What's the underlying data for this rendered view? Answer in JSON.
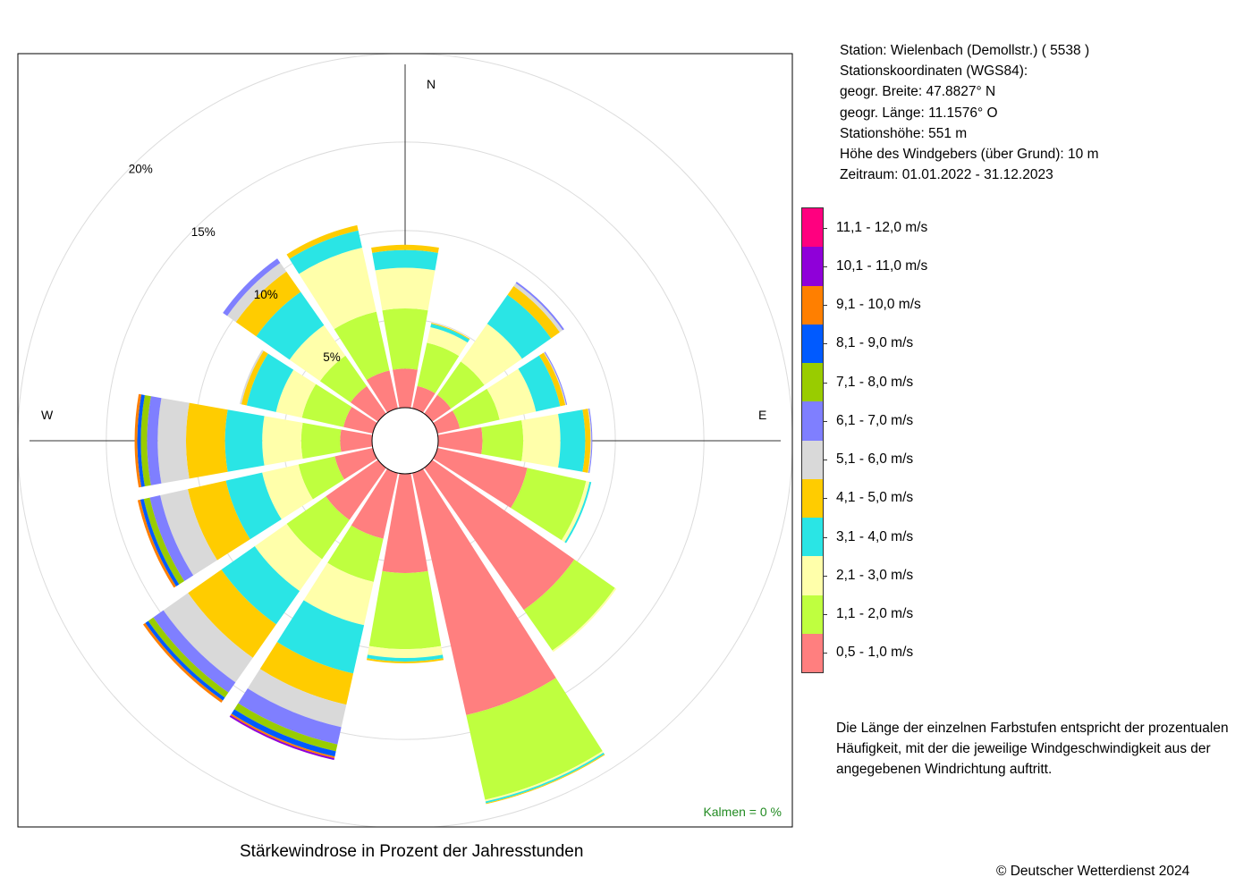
{
  "info": {
    "station": "Station:  Wielenbach (Demollstr.)  ( 5538 )",
    "coords_title": "Stationskoordinaten (WGS84):",
    "lat": "geogr. Breite: 47.8827° N",
    "lon": "geogr. Länge: 11.1576° O",
    "elevation": "Stationshöhe: 551 m",
    "sensor_height": "Höhe des Windgebers (über Grund): 10 m",
    "period": "Zeitraum: 01.01.2022 - 31.12.2023"
  },
  "note": [
    "Die Länge der einzelnen Farbstufen entspricht der prozentualen",
    "Häufigkeit, mit der die jeweilige Windgeschwindigkeit aus der",
    "angegebenen Windrichtung auftritt."
  ],
  "caption": "Stärkewindrose in Prozent der Jahresstunden",
  "copyright": "© Deutscher Wetterdienst  2024",
  "chart_data": {
    "type": "windrose",
    "directions": [
      "N",
      "NNO",
      "NO",
      "ONO",
      "O",
      "OSO",
      "SO",
      "SSO",
      "S",
      "SSW",
      "SW",
      "WSW",
      "W",
      "WNW",
      "NW",
      "NNW"
    ],
    "compass_labels": {
      "n": "N",
      "e": "E",
      "w": "W"
    },
    "radial_ticks": [
      {
        "value": 5,
        "label": "5%"
      },
      {
        "value": 10,
        "label": "10%"
      },
      {
        "value": 15,
        "label": "15%"
      },
      {
        "value": 20,
        "label": "20%"
      }
    ],
    "rmax": 21,
    "calm_text": "Kalmen  =  0 %",
    "speed_classes": [
      {
        "label": "0,5 - 1,0 m/s",
        "color": "#ff7f7f"
      },
      {
        "label": "1,1 - 2,0 m/s",
        "color": "#bfff3f"
      },
      {
        "label": "2,1 - 3,0 m/s",
        "color": "#ffffaa"
      },
      {
        "label": "3,1 - 4,0 m/s",
        "color": "#2ae5e5"
      },
      {
        "label": "4,1 - 5,0 m/s",
        "color": "#ffcc00"
      },
      {
        "label": "5,1 - 6,0 m/s",
        "color": "#d9d9d9"
      },
      {
        "label": "6,1 - 7,0 m/s",
        "color": "#7f7fff"
      },
      {
        "label": "7,1 - 8,0 m/s",
        "color": "#99cc00"
      },
      {
        "label": "8,1 - 9,0 m/s",
        "color": "#005aff"
      },
      {
        "label": "9,1 - 10,0 m/s",
        "color": "#ff7f00"
      },
      {
        "label": "10,1 - 11,0 m/s",
        "color": "#8f00d9"
      },
      {
        "label": "11,1 - 12,0 m/s",
        "color": "#ff007f"
      }
    ],
    "series": [
      {
        "direction": "N",
        "values": [
          2.2,
          3.4,
          2.3,
          1.0,
          0.3,
          0,
          0,
          0,
          0,
          0,
          0,
          0
        ]
      },
      {
        "direction": "NNO",
        "values": [
          1.3,
          2.5,
          0.9,
          0.2,
          0.05,
          0,
          0,
          0,
          0,
          0,
          0,
          0
        ]
      },
      {
        "direction": "NO",
        "values": [
          1.3,
          2.3,
          2.6,
          2.0,
          0.6,
          0.2,
          0.1,
          0,
          0,
          0,
          0,
          0
        ]
      },
      {
        "direction": "ONO",
        "values": [
          1.3,
          2.3,
          2.1,
          1.4,
          0.3,
          0.05,
          0.05,
          0,
          0,
          0,
          0,
          0
        ]
      },
      {
        "direction": "O",
        "values": [
          2.5,
          2.3,
          2.1,
          1.4,
          0.3,
          0.05,
          0.05,
          0,
          0,
          0,
          0,
          0
        ]
      },
      {
        "direction": "OSO",
        "values": [
          5.2,
          3.4,
          0.2,
          0.1,
          0,
          0,
          0,
          0,
          0,
          0,
          0,
          0
        ]
      },
      {
        "direction": "SO",
        "values": [
          9.8,
          2.8,
          0.1,
          0,
          0,
          0,
          0,
          0,
          0,
          0,
          0,
          0
        ]
      },
      {
        "direction": "SSO",
        "values": [
          14.0,
          4.9,
          0.1,
          0.1,
          0.05,
          0,
          0,
          0,
          0,
          0,
          0,
          0
        ]
      },
      {
        "direction": "S",
        "values": [
          5.6,
          4.3,
          0.5,
          0.2,
          0.1,
          0,
          0,
          0,
          0,
          0,
          0,
          0
        ]
      },
      {
        "direction": "SSW",
        "values": [
          3.8,
          2.5,
          2.5,
          2.8,
          1.8,
          1.3,
          1.0,
          0.4,
          0.3,
          0.1,
          0.1,
          0
        ]
      },
      {
        "direction": "SW",
        "values": [
          3.6,
          2.7,
          2.2,
          2.3,
          2.3,
          1.7,
          0.7,
          0.35,
          0.2,
          0.15,
          0,
          0
        ]
      },
      {
        "direction": "WSW",
        "values": [
          2.2,
          2.1,
          2.1,
          2.1,
          2.2,
          1.6,
          0.6,
          0.35,
          0.2,
          0.15,
          0,
          0
        ]
      },
      {
        "direction": "W",
        "values": [
          1.8,
          2.2,
          2.2,
          2.1,
          2.2,
          1.6,
          0.6,
          0.35,
          0.2,
          0.15,
          0,
          0
        ]
      },
      {
        "direction": "WNW",
        "values": [
          1.7,
          2.4,
          1.5,
          1.7,
          0.3,
          0.1,
          0,
          0,
          0,
          0,
          0,
          0
        ]
      },
      {
        "direction": "NW",
        "values": [
          1.9,
          2.1,
          2.1,
          2.3,
          1.4,
          0.6,
          0.3,
          0,
          0,
          0,
          0,
          0
        ]
      },
      {
        "direction": "NNW",
        "values": [
          2.2,
          3.4,
          3.7,
          1.0,
          0.3,
          0,
          0,
          0,
          0,
          0,
          0,
          0
        ]
      }
    ]
  }
}
